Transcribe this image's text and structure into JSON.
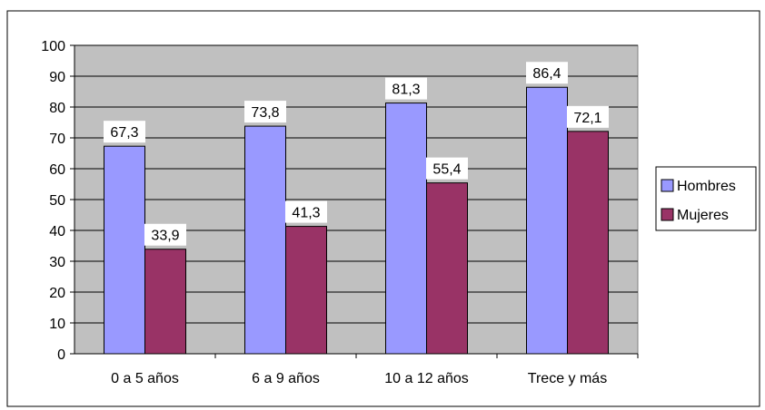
{
  "chart_data": {
    "type": "bar",
    "categories": [
      "0 a 5 años",
      "6 a 9 años",
      "10 a 12 años",
      "Trece y más"
    ],
    "series": [
      {
        "name": "Hombres",
        "values": [
          67.3,
          73.8,
          81.3,
          86.4
        ],
        "labels": [
          "67,3",
          "73,8",
          "81,3",
          "86,4"
        ],
        "color": "#9999FF"
      },
      {
        "name": "Mujeres",
        "values": [
          33.9,
          41.3,
          55.4,
          72.1
        ],
        "labels": [
          "33,9",
          "41,3",
          "55,4",
          "72,1"
        ],
        "color": "#993366"
      }
    ],
    "ylim": [
      0,
      100
    ],
    "yticks": [
      0,
      10,
      20,
      30,
      40,
      50,
      60,
      70,
      80,
      90,
      100
    ],
    "grid": true,
    "plot_background": "#C0C0C0",
    "legend": "right"
  }
}
